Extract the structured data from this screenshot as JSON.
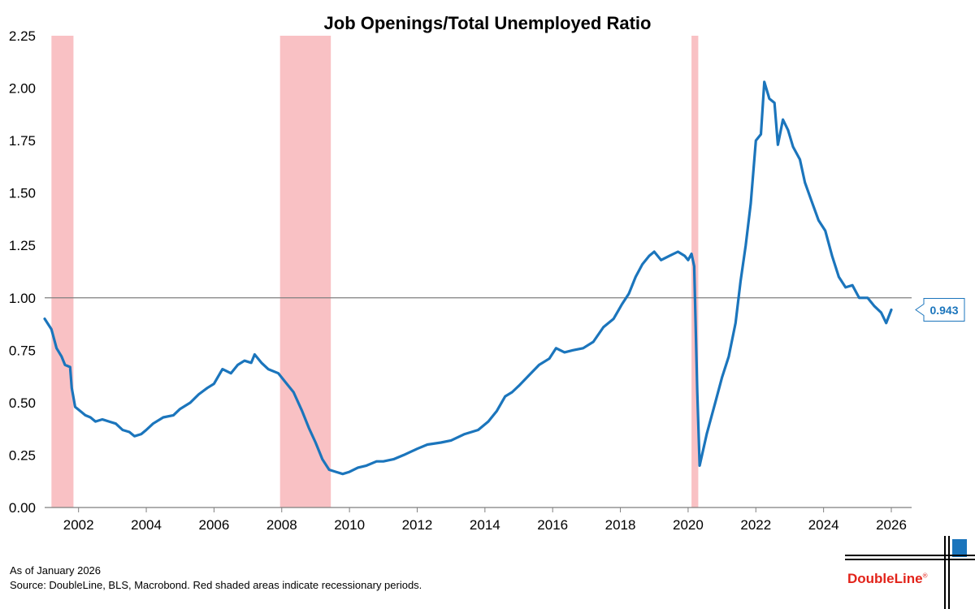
{
  "chart_data": {
    "type": "line",
    "title": "Job Openings/Total Unemployed Ratio",
    "xlabel": "",
    "ylabel": "",
    "xlim": [
      2001.0,
      2026.6
    ],
    "ylim": [
      0,
      2.25
    ],
    "y_ticks": [
      "0.00",
      "0.25",
      "0.50",
      "0.75",
      "1.00",
      "1.25",
      "1.50",
      "1.75",
      "2.00",
      "2.25"
    ],
    "x_ticks": [
      "2002",
      "2004",
      "2006",
      "2008",
      "2010",
      "2012",
      "2014",
      "2016",
      "2018",
      "2020",
      "2022",
      "2024",
      "2026"
    ],
    "reference_line": 1.0,
    "last_value_label": "0.943",
    "recessions": [
      [
        2001.2,
        2001.85
      ],
      [
        2007.95,
        2009.45
      ],
      [
        2020.1,
        2020.3
      ]
    ],
    "series": [
      {
        "name": "Job Openings/Total Unemployed Ratio",
        "color": "#1b75bc",
        "points": [
          [
            2001.0,
            0.9
          ],
          [
            2001.2,
            0.85
          ],
          [
            2001.35,
            0.76
          ],
          [
            2001.5,
            0.72
          ],
          [
            2001.6,
            0.68
          ],
          [
            2001.75,
            0.67
          ],
          [
            2001.8,
            0.57
          ],
          [
            2001.9,
            0.48
          ],
          [
            2002.05,
            0.46
          ],
          [
            2002.2,
            0.44
          ],
          [
            2002.35,
            0.43
          ],
          [
            2002.5,
            0.41
          ],
          [
            2002.7,
            0.42
          ],
          [
            2002.9,
            0.41
          ],
          [
            2003.1,
            0.4
          ],
          [
            2003.3,
            0.37
          ],
          [
            2003.5,
            0.36
          ],
          [
            2003.65,
            0.34
          ],
          [
            2003.85,
            0.35
          ],
          [
            2004.0,
            0.37
          ],
          [
            2004.2,
            0.4
          ],
          [
            2004.5,
            0.43
          ],
          [
            2004.8,
            0.44
          ],
          [
            2005.0,
            0.47
          ],
          [
            2005.3,
            0.5
          ],
          [
            2005.55,
            0.54
          ],
          [
            2005.8,
            0.57
          ],
          [
            2006.0,
            0.59
          ],
          [
            2006.25,
            0.66
          ],
          [
            2006.5,
            0.64
          ],
          [
            2006.7,
            0.68
          ],
          [
            2006.9,
            0.7
          ],
          [
            2007.1,
            0.69
          ],
          [
            2007.2,
            0.73
          ],
          [
            2007.4,
            0.69
          ],
          [
            2007.6,
            0.66
          ],
          [
            2007.9,
            0.64
          ],
          [
            2008.1,
            0.6
          ],
          [
            2008.35,
            0.55
          ],
          [
            2008.6,
            0.46
          ],
          [
            2008.8,
            0.38
          ],
          [
            2009.0,
            0.31
          ],
          [
            2009.2,
            0.23
          ],
          [
            2009.4,
            0.18
          ],
          [
            2009.6,
            0.17
          ],
          [
            2009.8,
            0.16
          ],
          [
            2010.0,
            0.17
          ],
          [
            2010.25,
            0.19
          ],
          [
            2010.5,
            0.2
          ],
          [
            2010.8,
            0.22
          ],
          [
            2011.0,
            0.22
          ],
          [
            2011.3,
            0.23
          ],
          [
            2011.6,
            0.25
          ],
          [
            2012.0,
            0.28
          ],
          [
            2012.3,
            0.3
          ],
          [
            2012.7,
            0.31
          ],
          [
            2013.0,
            0.32
          ],
          [
            2013.4,
            0.35
          ],
          [
            2013.8,
            0.37
          ],
          [
            2014.1,
            0.41
          ],
          [
            2014.35,
            0.46
          ],
          [
            2014.6,
            0.53
          ],
          [
            2014.8,
            0.55
          ],
          [
            2015.0,
            0.58
          ],
          [
            2015.3,
            0.63
          ],
          [
            2015.6,
            0.68
          ],
          [
            2015.9,
            0.71
          ],
          [
            2016.1,
            0.76
          ],
          [
            2016.35,
            0.74
          ],
          [
            2016.6,
            0.75
          ],
          [
            2016.9,
            0.76
          ],
          [
            2017.2,
            0.79
          ],
          [
            2017.5,
            0.86
          ],
          [
            2017.8,
            0.9
          ],
          [
            2018.05,
            0.97
          ],
          [
            2018.25,
            1.02
          ],
          [
            2018.45,
            1.1
          ],
          [
            2018.65,
            1.16
          ],
          [
            2018.85,
            1.2
          ],
          [
            2019.0,
            1.22
          ],
          [
            2019.2,
            1.18
          ],
          [
            2019.45,
            1.2
          ],
          [
            2019.7,
            1.22
          ],
          [
            2019.9,
            1.2
          ],
          [
            2020.0,
            1.18
          ],
          [
            2020.1,
            1.21
          ],
          [
            2020.18,
            1.15
          ],
          [
            2020.27,
            0.55
          ],
          [
            2020.34,
            0.2
          ],
          [
            2020.55,
            0.35
          ],
          [
            2020.8,
            0.5
          ],
          [
            2021.0,
            0.62
          ],
          [
            2021.2,
            0.72
          ],
          [
            2021.4,
            0.88
          ],
          [
            2021.55,
            1.08
          ],
          [
            2021.7,
            1.25
          ],
          [
            2021.85,
            1.45
          ],
          [
            2022.0,
            1.75
          ],
          [
            2022.15,
            1.78
          ],
          [
            2022.25,
            2.03
          ],
          [
            2022.4,
            1.95
          ],
          [
            2022.55,
            1.93
          ],
          [
            2022.65,
            1.73
          ],
          [
            2022.8,
            1.85
          ],
          [
            2022.95,
            1.8
          ],
          [
            2023.1,
            1.72
          ],
          [
            2023.3,
            1.66
          ],
          [
            2023.45,
            1.55
          ],
          [
            2023.65,
            1.46
          ],
          [
            2023.85,
            1.37
          ],
          [
            2024.05,
            1.32
          ],
          [
            2024.25,
            1.2
          ],
          [
            2024.45,
            1.1
          ],
          [
            2024.65,
            1.05
          ],
          [
            2024.85,
            1.06
          ],
          [
            2025.05,
            1.0
          ],
          [
            2025.3,
            1.0
          ],
          [
            2025.5,
            0.96
          ],
          [
            2025.7,
            0.93
          ],
          [
            2025.85,
            0.88
          ],
          [
            2026.0,
            0.943
          ]
        ]
      }
    ]
  },
  "footer": {
    "as_of": "As of January 2026",
    "source": "Source: DoubleLine, BLS, Macrobond. Red shaded areas indicate recessionary periods."
  },
  "brand": {
    "name": "DoubleLine",
    "registered": "®",
    "name_color": "#e2231a",
    "accent_color": "#1b75bc"
  }
}
